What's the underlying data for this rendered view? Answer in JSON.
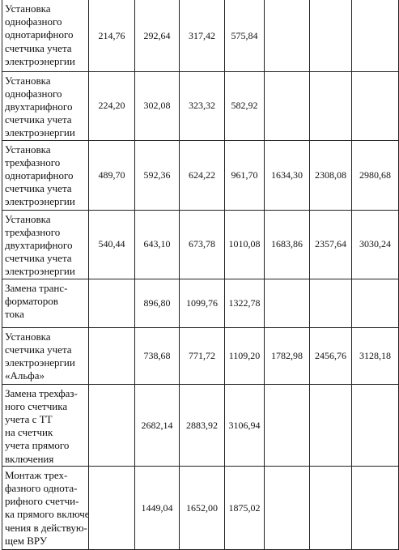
{
  "table": {
    "rows": [
      {
        "label": [
          "Установка",
          "однофазного",
          "однотарифного",
          "счетчика учета",
          "электроэнергии"
        ],
        "values": [
          "214,76",
          "292,64",
          "317,42",
          "575,84",
          null,
          null,
          null
        ]
      },
      {
        "label": [
          "Установка",
          "однофазного",
          "двухтарифного",
          "счетчика учета",
          "электроэнергии"
        ],
        "values": [
          "224,20",
          "302,08",
          "323,32",
          "582,92",
          null,
          null,
          null
        ]
      },
      {
        "label": [
          "Установка",
          "трехфазного",
          "однотарифного",
          "счетчика учета",
          "электроэнергии"
        ],
        "values": [
          "489,70",
          "592,36",
          "624,22",
          "961,70",
          "1634,30",
          "2308,08",
          "2980,68"
        ]
      },
      {
        "label": [
          "Установка",
          "трехфазного",
          "двухтарифного",
          "счетчика учета",
          "электроэнергии"
        ],
        "values": [
          "540,44",
          "643,10",
          "673,78",
          "1010,08",
          "1683,86",
          "2357,64",
          "3030,24"
        ]
      },
      {
        "label": [
          "Замена транс-",
          "форматоров",
          "тока"
        ],
        "values": [
          null,
          "896,80",
          "1099,76",
          "1322,78",
          null,
          null,
          null
        ]
      },
      {
        "label": [
          "Установка",
          "счетчика учета",
          "электроэнергии",
          "«Альфа»"
        ],
        "values": [
          null,
          "738,68",
          "771,72",
          "1109,20",
          "1782,98",
          "2456,76",
          "3128,18"
        ]
      },
      {
        "label": [
          "Замена трехфаз-",
          "ного счетчика",
          "учета с ТТ",
          "на счетчик",
          "учета прямого",
          "включения"
        ],
        "values": [
          null,
          "2682,14",
          "2883,92",
          "3106,94",
          null,
          null,
          null
        ]
      },
      {
        "label": [
          "Монтаж трех-",
          "фазного однота-",
          "рифного счетчи-",
          "ка прямого включе-",
          "чения в действую-",
          "щем ВРУ"
        ],
        "values": [
          null,
          "1449,04",
          "1652,00",
          "1875,02",
          null,
          null,
          null
        ]
      }
    ]
  }
}
